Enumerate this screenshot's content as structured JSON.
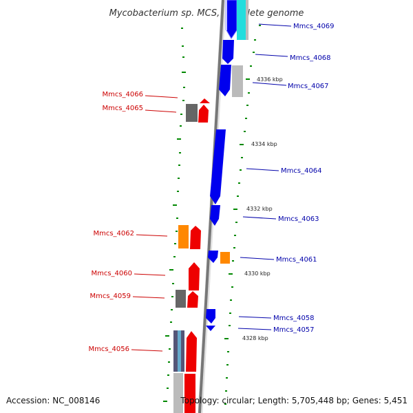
{
  "title": "Mycobacterium sp. MCS, complete genome",
  "accession": "Accession: NC_008146",
  "topology": "Topology: circular; Length: 5,705,448 bp; Genes: 5,451",
  "colors": {
    "reverse_label": "#cc0000",
    "forward_label": "#0000aa",
    "tick": "#008800",
    "backbone": "#777777"
  },
  "scale_labels": [
    "4336 kbp",
    "4334 kbp",
    "4332 kbp",
    "4330 kbp",
    "4328 kbp"
  ],
  "left_genes": [
    "Mmcs_4066",
    "Mmcs_4065",
    "Mmcs_4062",
    "Mmcs_4060",
    "Mmcs_4059",
    "Mmcs_4056"
  ],
  "right_genes": [
    "Mmcs_4069",
    "Mmcs_4068",
    "Mmcs_4067",
    "Mmcs_4064",
    "Mmcs_4063",
    "Mmcs_4061",
    "Mmcs_4058",
    "Mmcs_4057"
  ]
}
